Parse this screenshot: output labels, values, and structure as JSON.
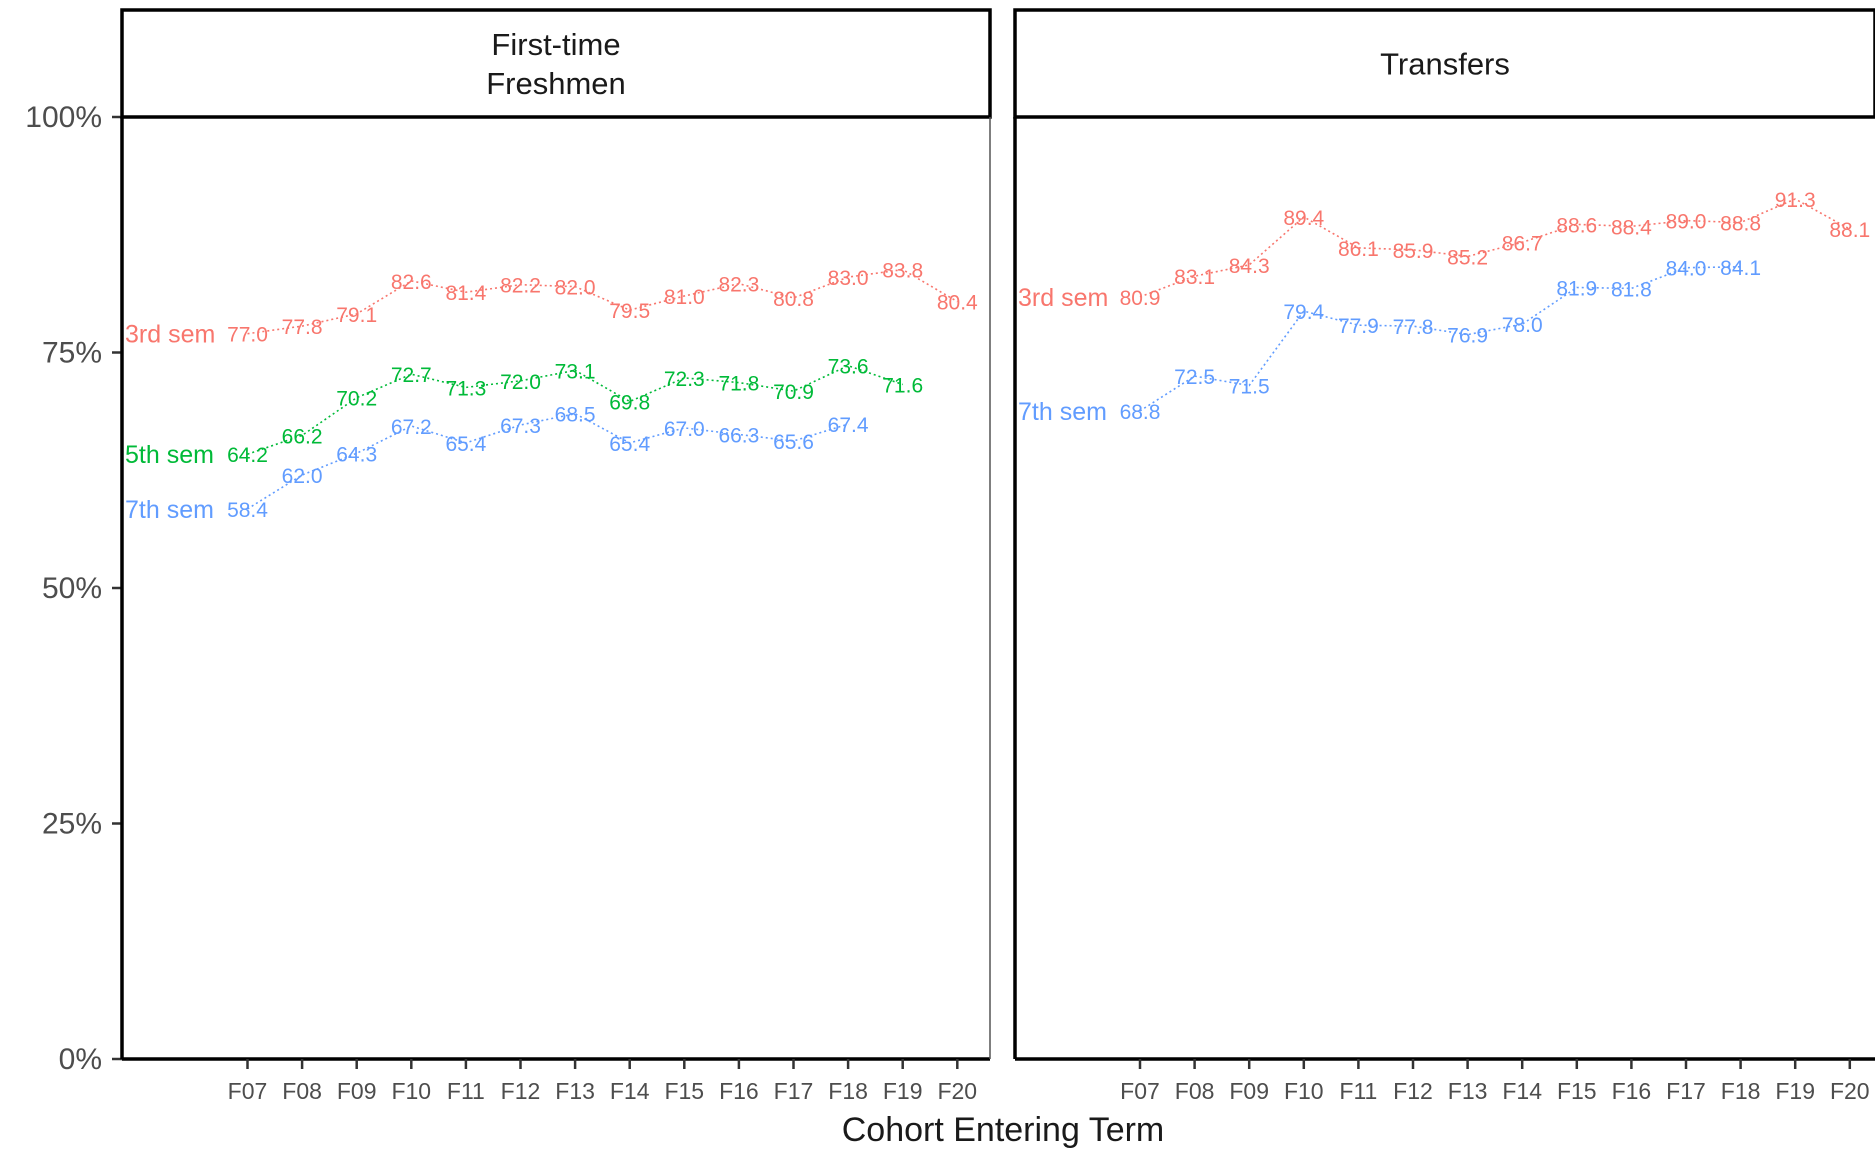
{
  "chart_data": {
    "type": "line",
    "xlabel": "Cohort Entering Term",
    "ylabel": "",
    "ylim": [
      0,
      100
    ],
    "yticks": [
      0,
      25,
      50,
      75,
      100
    ],
    "ytick_labels": [
      "0%",
      "25%",
      "50%",
      "75%",
      "100%"
    ],
    "categories": [
      "F07",
      "F08",
      "F09",
      "F10",
      "F11",
      "F12",
      "F13",
      "F14",
      "F15",
      "F16",
      "F17",
      "F18",
      "F19",
      "F20"
    ],
    "grid": false,
    "legend": "none (series labels placed at line start)",
    "colors": {
      "3rd sem": "#F8766D",
      "5th sem": "#00BA38",
      "7th sem": "#619CFF"
    },
    "panels": [
      {
        "title": "First-time\nFreshmen",
        "series": [
          {
            "name": "3rd sem",
            "values": [
              77.0,
              77.8,
              79.1,
              82.6,
              81.4,
              82.2,
              82.0,
              79.5,
              81.0,
              82.3,
              80.8,
              83.0,
              83.8,
              80.4
            ]
          },
          {
            "name": "5th sem",
            "values": [
              64.2,
              66.2,
              70.2,
              72.7,
              71.3,
              72.0,
              73.1,
              69.8,
              72.3,
              71.8,
              70.9,
              73.6,
              71.6,
              null
            ]
          },
          {
            "name": "7th sem",
            "values": [
              58.4,
              62.0,
              64.3,
              67.2,
              65.4,
              67.3,
              68.5,
              65.4,
              67.0,
              66.3,
              65.6,
              67.4,
              null,
              null
            ]
          }
        ]
      },
      {
        "title": "Transfers",
        "series": [
          {
            "name": "3rd sem",
            "values": [
              80.9,
              83.1,
              84.3,
              89.4,
              86.1,
              85.9,
              85.2,
              86.7,
              88.6,
              88.4,
              89.0,
              88.8,
              91.3,
              88.1
            ]
          },
          {
            "name": "7th sem",
            "values": [
              68.8,
              72.5,
              71.5,
              79.4,
              77.9,
              77.8,
              76.9,
              78.0,
              81.9,
              81.8,
              84.0,
              84.1,
              null,
              null
            ]
          }
        ]
      }
    ]
  }
}
